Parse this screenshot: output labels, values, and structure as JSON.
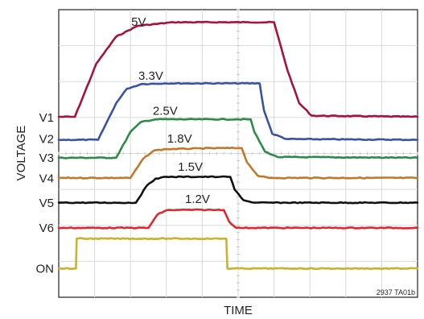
{
  "chart_data": {
    "type": "line",
    "ylabel": "VOLTAGE",
    "xlabel": "TIME",
    "figure_id": "2937 TA01b",
    "grid": true,
    "x_unit": "div",
    "y_unit": "div",
    "xlim": [
      0,
      10
    ],
    "ylim": [
      0,
      8
    ],
    "series": [
      {
        "name": "5V",
        "channel": "V1",
        "color": "#a4123f",
        "x": [
          0,
          0.45,
          1.05,
          1.6,
          2.2,
          3.2,
          5.2,
          6.0,
          6.38,
          6.7,
          7.05,
          10
        ],
        "y": [
          5.02,
          5.02,
          6.5,
          7.25,
          7.55,
          7.65,
          7.65,
          7.65,
          6.3,
          5.4,
          5.05,
          5.02
        ]
      },
      {
        "name": "3.3V",
        "channel": "V2",
        "color": "#3953a4",
        "x": [
          0,
          1.1,
          1.6,
          1.9,
          2.3,
          3.0,
          4.5,
          5.6,
          5.72,
          5.95,
          6.35,
          10
        ],
        "y": [
          4.38,
          4.38,
          5.4,
          5.8,
          5.93,
          5.95,
          5.95,
          5.95,
          5.2,
          4.55,
          4.4,
          4.38
        ]
      },
      {
        "name": "2.5V",
        "channel": "V3",
        "color": "#2e8b47",
        "x": [
          0,
          1.6,
          2.0,
          2.3,
          2.7,
          5.0,
          5.35,
          5.45,
          5.75,
          6.1,
          10
        ],
        "y": [
          3.88,
          3.88,
          4.6,
          4.88,
          4.95,
          4.95,
          4.95,
          4.6,
          4.05,
          3.9,
          3.88
        ]
      },
      {
        "name": "1.8V",
        "channel": "V4",
        "color": "#c1782c",
        "x": [
          0,
          2.0,
          2.35,
          2.65,
          3.0,
          4.5,
          5.1,
          5.25,
          5.55,
          5.85,
          10
        ],
        "y": [
          3.32,
          3.32,
          3.85,
          4.08,
          4.12,
          4.15,
          4.15,
          3.75,
          3.38,
          3.32,
          3.32
        ]
      },
      {
        "name": "1.5V",
        "channel": "V5",
        "color": "#111111",
        "x": [
          0,
          2.15,
          2.45,
          2.7,
          3.0,
          4.5,
          4.78,
          4.9,
          5.15,
          5.45,
          10
        ],
        "y": [
          2.63,
          2.63,
          3.1,
          3.3,
          3.35,
          3.35,
          3.35,
          3.0,
          2.7,
          2.63,
          2.63
        ]
      },
      {
        "name": "1.2V",
        "channel": "V6",
        "color": "#e0262f",
        "x": [
          0,
          2.5,
          2.75,
          3.0,
          3.3,
          4.4,
          4.6,
          4.75,
          4.95,
          10
        ],
        "y": [
          1.93,
          1.93,
          2.3,
          2.42,
          2.43,
          2.43,
          2.43,
          2.1,
          1.93,
          1.93
        ]
      },
      {
        "name": "ON",
        "channel": "ON",
        "color": "#c8b22e",
        "x": [
          0,
          0.48,
          0.5,
          4.67,
          4.7,
          10
        ],
        "y": [
          0.8,
          0.8,
          1.63,
          1.63,
          0.8,
          0.8
        ]
      }
    ],
    "channel_labels": [
      "V1",
      "V2",
      "V3",
      "V4",
      "V5",
      "V6",
      "ON"
    ],
    "channel_levels": [
      5.0,
      4.4,
      3.88,
      3.3,
      2.62,
      1.93,
      0.8
    ]
  }
}
